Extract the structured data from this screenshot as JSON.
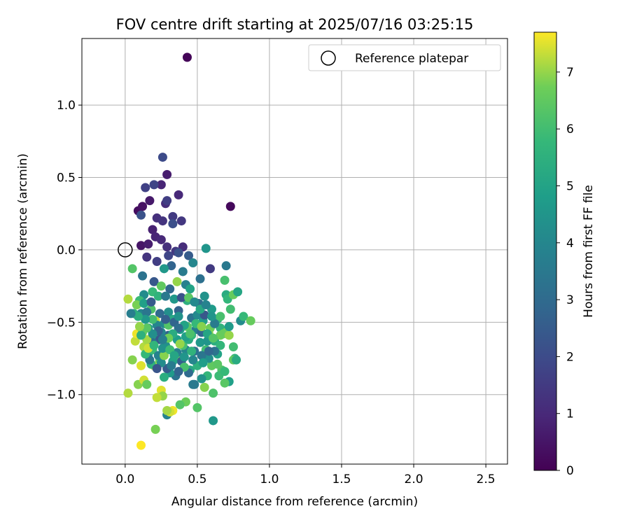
{
  "chart_data": {
    "type": "scatter",
    "title": "FOV centre drift starting at 2025/07/16 03:25:15",
    "xlabel": "Angular distance from reference (arcmin)",
    "ylabel": "Rotation from reference (arcmin)",
    "xlim": [
      -0.3,
      2.65
    ],
    "ylim": [
      -1.48,
      1.46
    ],
    "xticks": [
      "0.0",
      "0.5",
      "1.0",
      "1.5",
      "2.0",
      "2.5"
    ],
    "yticks": [
      "−1.0",
      "−0.5",
      "0.0",
      "0.5",
      "1.0"
    ],
    "grid": true,
    "legend": {
      "placement": "top-right",
      "entries": [
        "Reference platepar"
      ]
    },
    "reference_point": {
      "x": 0.0,
      "y": 0.0
    },
    "colorbar": {
      "label": "Hours from first FF file",
      "range": [
        0,
        7.7
      ],
      "ticks": [
        "0",
        "1",
        "2",
        "3",
        "4",
        "5",
        "6",
        "7"
      ],
      "colormap": "viridis"
    },
    "points": [
      [
        0.43,
        1.33,
        0.1
      ],
      [
        0.73,
        0.3,
        0.2
      ],
      [
        0.09,
        0.27,
        0.3
      ],
      [
        0.12,
        0.3,
        0.4
      ],
      [
        0.17,
        0.34,
        0.6
      ],
      [
        0.29,
        0.52,
        0.7
      ],
      [
        0.25,
        0.45,
        0.9
      ],
      [
        0.37,
        0.38,
        1.0
      ],
      [
        0.28,
        0.32,
        1.1
      ],
      [
        0.22,
        0.22,
        1.2
      ],
      [
        0.26,
        0.2,
        1.3
      ],
      [
        0.39,
        0.2,
        1.4
      ],
      [
        0.33,
        0.23,
        1.5
      ],
      [
        0.29,
        0.34,
        1.6
      ],
      [
        0.14,
        0.43,
        1.7
      ],
      [
        0.2,
        0.45,
        1.8
      ],
      [
        0.26,
        0.64,
        2.0
      ],
      [
        0.33,
        0.18,
        2.1
      ],
      [
        0.11,
        0.24,
        2.2
      ],
      [
        0.19,
        0.14,
        0.8
      ],
      [
        0.11,
        0.03,
        0.5
      ],
      [
        0.16,
        0.04,
        0.7
      ],
      [
        0.21,
        0.09,
        0.9
      ],
      [
        0.25,
        0.07,
        1.0
      ],
      [
        0.29,
        0.02,
        1.2
      ],
      [
        0.35,
        -0.01,
        1.4
      ],
      [
        0.4,
        0.02,
        1.1
      ],
      [
        0.15,
        -0.05,
        1.3
      ],
      [
        0.22,
        -0.08,
        1.6
      ],
      [
        0.3,
        -0.04,
        1.8
      ],
      [
        0.37,
        -0.02,
        2.2
      ],
      [
        0.44,
        -0.04,
        2.5
      ],
      [
        0.59,
        -0.13,
        1.5
      ],
      [
        0.7,
        -0.11,
        3.5
      ],
      [
        0.56,
        0.01,
        4.5
      ],
      [
        0.47,
        -0.09,
        4.0
      ],
      [
        0.52,
        -0.2,
        3.2
      ],
      [
        0.4,
        -0.15,
        3.6
      ],
      [
        0.32,
        -0.11,
        2.8
      ],
      [
        0.27,
        -0.13,
        4.6
      ],
      [
        0.2,
        -0.22,
        2.4
      ],
      [
        0.12,
        -0.18,
        3.3
      ],
      [
        0.05,
        -0.13,
        6.3
      ],
      [
        0.13,
        -0.31,
        4.2
      ],
      [
        0.19,
        -0.29,
        5.8
      ],
      [
        0.25,
        -0.25,
        6.5
      ],
      [
        0.31,
        -0.27,
        2.9
      ],
      [
        0.36,
        -0.22,
        7.0
      ],
      [
        0.42,
        -0.24,
        3.8
      ],
      [
        0.45,
        -0.27,
        5.0
      ],
      [
        0.55,
        -0.32,
        4.4
      ],
      [
        0.69,
        -0.21,
        6.1
      ],
      [
        0.7,
        -0.31,
        5.3
      ],
      [
        0.71,
        -0.34,
        5.7
      ],
      [
        0.75,
        -0.31,
        6.6
      ],
      [
        0.78,
        -0.29,
        5.1
      ],
      [
        0.73,
        -0.41,
        6.0
      ],
      [
        0.6,
        -0.41,
        4.7
      ],
      [
        0.51,
        -0.37,
        3.1
      ],
      [
        0.43,
        -0.35,
        5.5
      ],
      [
        0.37,
        -0.42,
        2.7
      ],
      [
        0.3,
        -0.43,
        4.3
      ],
      [
        0.24,
        -0.44,
        3.0
      ],
      [
        0.18,
        -0.41,
        6.2
      ],
      [
        0.11,
        -0.44,
        3.9
      ],
      [
        0.06,
        -0.44,
        5.4
      ],
      [
        0.02,
        -0.34,
        7.2
      ],
      [
        0.1,
        -0.35,
        5.9
      ],
      [
        0.15,
        -0.43,
        3.4
      ],
      [
        0.21,
        -0.49,
        7.3
      ],
      [
        0.27,
        -0.51,
        4.1
      ],
      [
        0.33,
        -0.48,
        5.2
      ],
      [
        0.38,
        -0.55,
        4.8
      ],
      [
        0.43,
        -0.53,
        6.4
      ],
      [
        0.49,
        -0.55,
        3.7
      ],
      [
        0.54,
        -0.49,
        4.9
      ],
      [
        0.59,
        -0.54,
        6.7
      ],
      [
        0.66,
        -0.54,
        5.6
      ],
      [
        0.7,
        -0.57,
        6.8
      ],
      [
        0.8,
        -0.49,
        4.2
      ],
      [
        0.82,
        -0.46,
        5.8
      ],
      [
        0.87,
        -0.49,
        6.6
      ],
      [
        0.75,
        -0.67,
        6.0
      ],
      [
        0.76,
        -0.75,
        5.5
      ],
      [
        0.72,
        -0.91,
        4.9
      ],
      [
        0.67,
        -0.83,
        6.2
      ],
      [
        0.64,
        -0.72,
        5.0
      ],
      [
        0.6,
        -0.8,
        6.5
      ],
      [
        0.57,
        -0.87,
        5.7
      ],
      [
        0.55,
        -0.95,
        6.9
      ],
      [
        0.53,
        -0.89,
        4.4
      ],
      [
        0.5,
        -1.09,
        6.3
      ],
      [
        0.47,
        -0.93,
        3.6
      ],
      [
        0.45,
        -0.83,
        5.2
      ],
      [
        0.42,
        -0.69,
        4.0
      ],
      [
        0.38,
        -0.74,
        6.8
      ],
      [
        0.35,
        -0.87,
        3.3
      ],
      [
        0.31,
        -0.85,
        4.7
      ],
      [
        0.29,
        -1.14,
        3.9
      ],
      [
        0.33,
        -1.11,
        7.6
      ],
      [
        0.31,
        -1.12,
        7.4
      ],
      [
        0.29,
        -1.11,
        7.1
      ],
      [
        0.25,
        -0.97,
        7.5
      ],
      [
        0.26,
        -1.01,
        7.0
      ],
      [
        0.22,
        -1.02,
        7.3
      ],
      [
        0.21,
        -1.24,
        6.8
      ],
      [
        0.11,
        -1.35,
        7.7
      ],
      [
        0.02,
        -0.99,
        7.2
      ],
      [
        0.09,
        -0.93,
        6.9
      ],
      [
        0.13,
        -0.9,
        7.4
      ],
      [
        0.15,
        -0.93,
        6.6
      ],
      [
        0.2,
        -0.8,
        7.1
      ],
      [
        0.24,
        -0.76,
        6.4
      ],
      [
        0.18,
        -0.79,
        5.6
      ],
      [
        0.11,
        -0.8,
        7.5
      ],
      [
        0.05,
        -0.76,
        6.9
      ],
      [
        0.07,
        -0.63,
        7.3
      ],
      [
        0.08,
        -0.58,
        7.6
      ],
      [
        0.13,
        -0.67,
        7.2
      ],
      [
        0.16,
        -0.72,
        4.5
      ],
      [
        0.19,
        -0.69,
        5.9
      ],
      [
        0.23,
        -0.73,
        3.8
      ],
      [
        0.28,
        -0.66,
        4.3
      ],
      [
        0.3,
        -0.59,
        2.7
      ],
      [
        0.36,
        -0.62,
        4.8
      ],
      [
        0.4,
        -0.66,
        6.1
      ],
      [
        0.44,
        -0.62,
        5.3
      ],
      [
        0.48,
        -0.7,
        3.2
      ],
      [
        0.52,
        -0.64,
        4.6
      ],
      [
        0.56,
        -0.69,
        6.0
      ],
      [
        0.62,
        -0.63,
        5.4
      ],
      [
        0.66,
        -0.59,
        6.7
      ],
      [
        0.69,
        -0.92,
        6.4
      ],
      [
        0.65,
        -0.87,
        5.9
      ],
      [
        0.61,
        -0.99,
        6.2
      ],
      [
        0.61,
        -1.18,
        4.6
      ],
      [
        0.42,
        -1.05,
        6.7
      ],
      [
        0.38,
        -1.07,
        6.3
      ],
      [
        0.48,
        -0.93,
        3.5
      ],
      [
        0.44,
        -0.85,
        3.0
      ],
      [
        0.39,
        -0.77,
        2.6
      ],
      [
        0.36,
        -0.71,
        3.7
      ],
      [
        0.33,
        -0.77,
        5.0
      ],
      [
        0.29,
        -0.82,
        2.5
      ],
      [
        0.25,
        -0.78,
        4.2
      ],
      [
        0.22,
        -0.82,
        2.3
      ],
      [
        0.27,
        -0.88,
        5.4
      ],
      [
        0.17,
        -0.76,
        3.4
      ],
      [
        0.14,
        -0.72,
        5.8
      ],
      [
        0.12,
        -0.57,
        6.6
      ],
      [
        0.16,
        -0.54,
        4.7
      ],
      [
        0.21,
        -0.6,
        5.1
      ],
      [
        0.25,
        -0.57,
        3.9
      ],
      [
        0.3,
        -0.52,
        6.3
      ],
      [
        0.34,
        -0.5,
        2.8
      ],
      [
        0.37,
        -0.46,
        4.4
      ],
      [
        0.41,
        -0.52,
        5.0
      ],
      [
        0.46,
        -0.47,
        3.3
      ],
      [
        0.5,
        -0.45,
        4.1
      ],
      [
        0.55,
        -0.45,
        2.4
      ],
      [
        0.58,
        -0.58,
        6.9
      ],
      [
        0.64,
        -0.48,
        5.6
      ],
      [
        0.68,
        -0.58,
        6.6
      ],
      [
        0.72,
        -0.59,
        7.0
      ],
      [
        0.62,
        -0.51,
        3.6
      ],
      [
        0.57,
        -0.63,
        4.5
      ],
      [
        0.53,
        -0.57,
        2.9
      ],
      [
        0.46,
        -0.59,
        5.7
      ],
      [
        0.42,
        -0.6,
        4.9
      ],
      [
        0.37,
        -0.54,
        3.1
      ],
      [
        0.33,
        -0.58,
        5.3
      ],
      [
        0.28,
        -0.48,
        2.6
      ],
      [
        0.22,
        -0.52,
        4.0
      ],
      [
        0.19,
        -0.48,
        6.0
      ],
      [
        0.14,
        -0.48,
        4.6
      ],
      [
        0.09,
        -0.46,
        5.4
      ],
      [
        0.04,
        -0.44,
        3.7
      ],
      [
        0.08,
        -0.38,
        6.8
      ],
      [
        0.13,
        -0.37,
        4.9
      ],
      [
        0.18,
        -0.36,
        2.5
      ],
      [
        0.23,
        -0.32,
        5.6
      ],
      [
        0.28,
        -0.32,
        3.5
      ],
      [
        0.34,
        -0.34,
        4.6
      ],
      [
        0.39,
        -0.33,
        2.2
      ],
      [
        0.44,
        -0.33,
        6.4
      ],
      [
        0.48,
        -0.36,
        4.1
      ],
      [
        0.52,
        -0.41,
        5.2
      ],
      [
        0.56,
        -0.38,
        3.9
      ],
      [
        0.6,
        -0.46,
        4.5
      ],
      [
        0.66,
        -0.46,
        6.1
      ],
      [
        0.75,
        -0.76,
        6.5
      ],
      [
        0.77,
        -0.76,
        5.3
      ],
      [
        0.69,
        -0.84,
        5.8
      ],
      [
        0.64,
        -0.79,
        6.4
      ],
      [
        0.58,
        -0.75,
        4.3
      ],
      [
        0.53,
        -0.73,
        3.4
      ],
      [
        0.5,
        -0.8,
        5.5
      ],
      [
        0.47,
        -0.76,
        4.0
      ],
      [
        0.41,
        -0.81,
        6.1
      ],
      [
        0.37,
        -0.84,
        2.8
      ],
      [
        0.32,
        -0.8,
        3.6
      ],
      [
        0.27,
        -0.73,
        6.9
      ],
      [
        0.24,
        -0.62,
        2.4
      ],
      [
        0.19,
        -0.64,
        3.2
      ],
      [
        0.15,
        -0.62,
        7.1
      ],
      [
        0.11,
        -0.59,
        5.5
      ],
      [
        0.16,
        -0.68,
        7.4
      ],
      [
        0.2,
        -0.66,
        5.7
      ],
      [
        0.26,
        -0.68,
        4.4
      ],
      [
        0.31,
        -0.69,
        5.9
      ],
      [
        0.38,
        -0.65,
        7.0
      ],
      [
        0.45,
        -0.58,
        6.2
      ],
      [
        0.49,
        -0.51,
        5.8
      ],
      [
        0.53,
        -0.53,
        6.9
      ],
      [
        0.57,
        -0.58,
        5.1
      ],
      [
        0.61,
        -0.61,
        6.3
      ],
      [
        0.66,
        -0.66,
        5.7
      ],
      [
        0.72,
        -0.53,
        4.7
      ],
      [
        0.62,
        -0.7,
        3.3
      ],
      [
        0.58,
        -0.7,
        2.9
      ],
      [
        0.54,
        -0.78,
        4.8
      ],
      [
        0.46,
        -0.7,
        5.6
      ],
      [
        0.41,
        -0.74,
        4.5
      ],
      [
        0.34,
        -0.73,
        5.1
      ],
      [
        0.3,
        -0.61,
        6.7
      ],
      [
        0.26,
        -0.62,
        3.7
      ],
      [
        0.23,
        -0.56,
        2.7
      ],
      [
        0.19,
        -0.58,
        4.3
      ],
      [
        0.15,
        -0.54,
        6.4
      ],
      [
        0.1,
        -0.53,
        7.0
      ]
    ]
  }
}
